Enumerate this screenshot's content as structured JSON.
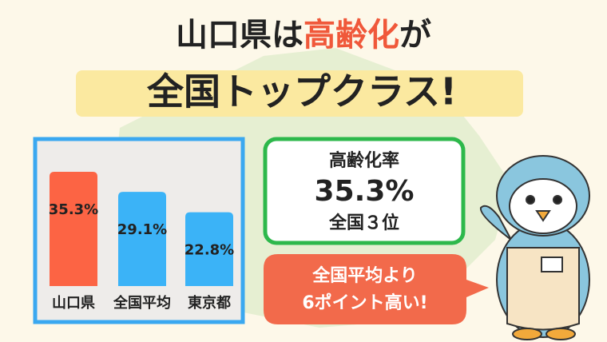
{
  "headline": {
    "line1": [
      "山口県は",
      "高齢化",
      "が"
    ],
    "line2": "全国トップクラス!"
  },
  "stat_card": {
    "label": "高齢化率",
    "value": "35.3%",
    "rank": "全国３位"
  },
  "callout": {
    "line1": "全国平均より",
    "line2": "6ポイント高い!"
  },
  "chart_data": {
    "type": "bar",
    "categories": [
      "山口県",
      "全国平均",
      "東京都"
    ],
    "values": [
      35.3,
      29.1,
      22.8
    ],
    "value_labels": [
      "35.3%",
      "29.1%",
      "22.8%"
    ],
    "colors": [
      "#fc6444",
      "#3bb3f7",
      "#3bb3f7"
    ]
  }
}
